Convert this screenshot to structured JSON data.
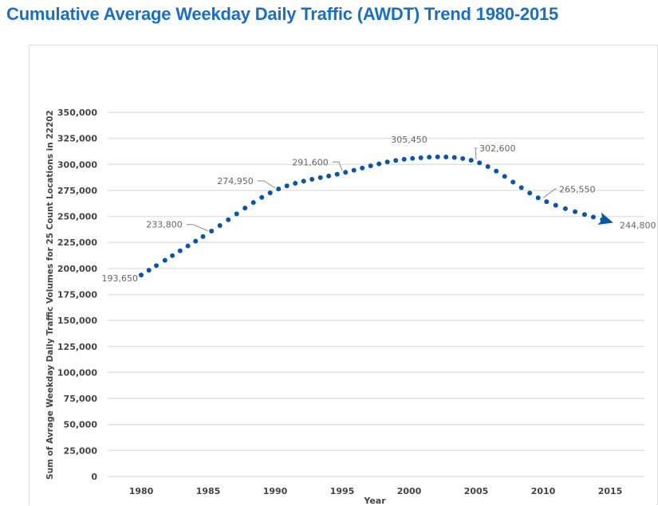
{
  "chart_data": {
    "type": "line",
    "title": "Cumulative Average Weekday Daily Traffic (AWDT) Trend 1980-2015",
    "xlabel": "Year",
    "ylabel": "Sum of Avrage Weekday Daily Traffic Volumes for 25 Count Locations in 22202",
    "ylim": [
      0,
      350000
    ],
    "xlim": [
      1980,
      2015
    ],
    "grid": true,
    "line_style": "dotted with arrowhead",
    "color": "#0a55a8",
    "x": [
      1980,
      1985,
      1990,
      1995,
      2000,
      2005,
      2010,
      2015
    ],
    "values": [
      193650,
      233800,
      274950,
      291600,
      305450,
      302600,
      265550,
      244800
    ],
    "data_labels": [
      "193,650",
      "233,800",
      "274,950",
      "291,600",
      "305,450",
      "302,600",
      "265,550",
      "244,800"
    ],
    "x_ticks": [
      "1980",
      "1985",
      "1990",
      "1995",
      "2000",
      "2005",
      "2010",
      "2015"
    ],
    "y_ticks": [
      "0",
      "25,000",
      "50,000",
      "75,000",
      "100,000",
      "125,000",
      "150,000",
      "175,000",
      "200,000",
      "225,000",
      "250,000",
      "275,000",
      "300,000",
      "325,000",
      "350,000"
    ]
  }
}
